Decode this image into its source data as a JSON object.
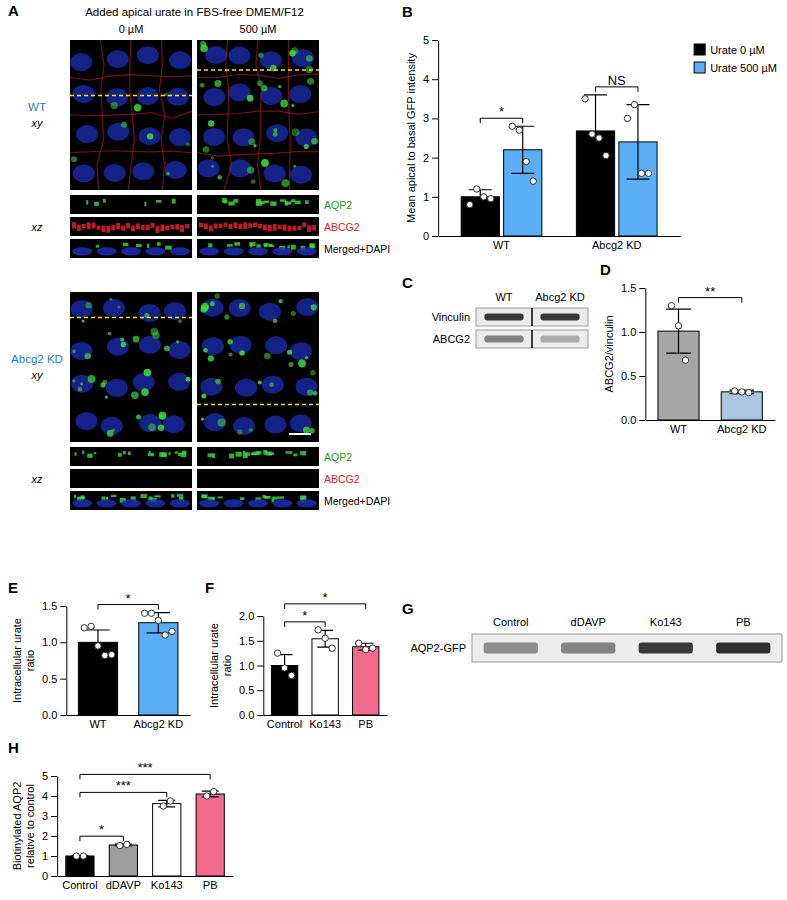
{
  "image_panels": {
    "A": {
      "panel": "A",
      "title": "Added apical urate in FBS-free DMEM/F12",
      "columns": [
        "0 µM",
        "500 µM"
      ],
      "rows": [
        {
          "label": "WT",
          "color": "#1f7fc4",
          "views": [
            "xy",
            "xz"
          ]
        },
        {
          "label": "Abcg2 KD",
          "color": "#1f7fc4",
          "views": [
            "xy",
            "xz"
          ]
        }
      ],
      "channels": [
        {
          "name": "AQP2",
          "color": "#1a9e1a"
        },
        {
          "name": "ABCG2",
          "color": "#e41a1c"
        },
        {
          "name": "Merged+DAPI",
          "color": "#000000"
        }
      ]
    },
    "C": {
      "panel": "C",
      "lanes": [
        "WT",
        "Abcg2 KD"
      ],
      "bands": [
        {
          "name": "Vinculin",
          "intensity": [
            0.85,
            0.85
          ]
        },
        {
          "name": "ABCG2",
          "intensity": [
            0.5,
            0.3
          ]
        }
      ]
    },
    "G": {
      "panel": "G",
      "lanes": [
        "Control",
        "dDAVP",
        "Ko143",
        "PB"
      ],
      "bands": [
        {
          "name": "AQP2-GFP",
          "intensity": [
            0.45,
            0.5,
            0.85,
            0.9
          ]
        }
      ]
    }
  },
  "chart_data": [
    {
      "type": "bar",
      "panel": "B",
      "categories": [
        "WT",
        "Abcg2 KD"
      ],
      "y_label": "Mean apical to basal GFP intensity",
      "ylim": [
        0,
        5
      ],
      "yticks": [
        0,
        1,
        2,
        3,
        4,
        5
      ],
      "legend": "upper right",
      "series": [
        {
          "name": "Urate 0 µM",
          "color": "#000000",
          "values": [
            1.0,
            2.68
          ],
          "errors": [
            0.18,
            0.92
          ],
          "points": [
            [
              0.8,
              1.2,
              1.0,
              0.95
            ],
            [
              3.5,
              2.6,
              2.5,
              2.05
            ]
          ]
        },
        {
          "name": "Urate 500 µM",
          "color": "#5aaef5",
          "values": [
            2.2,
            2.4
          ],
          "errors": [
            0.6,
            0.95
          ],
          "points": [
            [
              2.8,
              2.7,
              1.9,
              1.4
            ],
            [
              3.0,
              3.35,
              1.6,
              1.6
            ]
          ]
        }
      ],
      "annotations": [
        {
          "text": "*",
          "category": "WT"
        },
        {
          "text": "NS",
          "category": "Abcg2 KD"
        }
      ]
    },
    {
      "type": "bar",
      "panel": "D",
      "categories": [
        "WT",
        "Abcg2 KD"
      ],
      "y_label": "ABCG2/vinculin",
      "ylim": [
        0,
        1.5
      ],
      "yticks": [
        {
          "value": 0,
          "label": "0.0"
        },
        0.5,
        {
          "value": 1,
          "label": "1.0"
        },
        1.5
      ],
      "values": [
        1.01,
        0.32
      ],
      "errors": [
        0.25,
        0.02
      ],
      "points": [
        [
          1.3,
          1.07,
          0.68
        ],
        [
          0.33,
          0.32,
          0.31
        ]
      ],
      "colors": [
        "#a6a6a6",
        "#a9c5e0"
      ],
      "annotations": [
        {
          "text": "**",
          "from": "WT",
          "to": "Abcg2 KD"
        }
      ]
    },
    {
      "type": "bar",
      "panel": "E",
      "categories": [
        "WT",
        "Abcg2 KD"
      ],
      "y_label": "Intracellular urate ratio",
      "ylim": [
        0,
        1.5
      ],
      "yticks": [
        {
          "value": 0,
          "label": "0.0"
        },
        0.5,
        {
          "value": 1,
          "label": "1.0"
        },
        1.5
      ],
      "values": [
        1.0,
        1.27
      ],
      "errors": [
        0.17,
        0.14
      ],
      "points": [
        [
          1.2,
          1.22,
          0.95,
          0.82,
          0.83
        ],
        [
          1.4,
          1.4,
          1.3,
          1.1,
          1.15
        ]
      ],
      "colors": [
        "#000000",
        "#5aaef5"
      ],
      "annotations": [
        {
          "text": "*",
          "from": "WT",
          "to": "Abcg2 KD"
        }
      ]
    },
    {
      "type": "bar",
      "panel": "F",
      "categories": [
        "Control",
        "Ko143",
        "PB"
      ],
      "y_label": "Intracellular urate ratio",
      "ylim": [
        0,
        2
      ],
      "yticks": [
        {
          "value": 0,
          "label": "0.0"
        },
        0.5,
        {
          "value": 1,
          "label": "1.0"
        },
        1.5,
        {
          "value": 2,
          "label": "2.0"
        }
      ],
      "values": [
        1.0,
        1.54,
        1.38
      ],
      "errors": [
        0.22,
        0.17,
        0.07
      ],
      "points": [
        [
          1.25,
          0.95,
          0.8
        ],
        [
          1.72,
          1.55,
          1.35
        ],
        [
          1.45,
          1.32,
          1.35
        ]
      ],
      "colors": [
        "#000000",
        "#ffffff",
        "#f26a8d"
      ],
      "annotations": [
        {
          "text": "*",
          "from": "Control",
          "to": "Ko143"
        },
        {
          "text": "*",
          "from": "Control",
          "to": "PB"
        }
      ]
    },
    {
      "type": "bar",
      "panel": "H",
      "categories": [
        "Control",
        "dDAVP",
        "Ko143",
        "PB"
      ],
      "y_label": "Biotinylated AQP2 relative to control",
      "ylim": [
        0,
        5
      ],
      "yticks": [
        0,
        1,
        2,
        3,
        4,
        5
      ],
      "values": [
        1.0,
        1.55,
        3.62,
        4.1
      ],
      "errors": [
        0.02,
        0.04,
        0.16,
        0.14
      ],
      "points": [
        [
          1.0,
          1.0
        ],
        [
          1.52,
          1.58
        ],
        [
          3.5,
          3.75
        ],
        [
          4.0,
          4.22
        ]
      ],
      "colors": [
        "#000000",
        "#9e9e9e",
        "#ffffff",
        "#f26a8d"
      ],
      "annotations": [
        {
          "text": "*",
          "from": "Control",
          "to": "dDAVP"
        },
        {
          "text": "***",
          "from": "Control",
          "to": "Ko143"
        },
        {
          "text": "***",
          "from": "Control",
          "to": "PB"
        }
      ]
    }
  ]
}
